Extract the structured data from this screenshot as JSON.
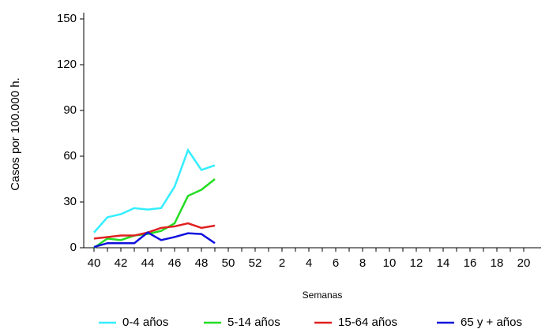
{
  "chart_data": {
    "type": "line",
    "y_label": "Casos por 100.000 h.",
    "x_label": "Semanas",
    "categories": [
      "40",
      null,
      "42",
      null,
      "44",
      null,
      "46",
      null,
      "48",
      null,
      "50",
      null,
      "52",
      null,
      "2",
      null,
      "4",
      null,
      "6",
      null,
      "8",
      null,
      "10",
      null,
      "12",
      null,
      "14",
      null,
      "16",
      null,
      "18",
      null,
      "20"
    ],
    "ylim": [
      0,
      150
    ],
    "yticks": [
      0,
      30,
      60,
      90,
      120,
      150
    ],
    "legend": "bottom",
    "series": [
      {
        "name": "0-4 años",
        "color": "#33eeff",
        "values": [
          10,
          20,
          22,
          26,
          25,
          26,
          40,
          64,
          51,
          54,
          null,
          null,
          null,
          null,
          null,
          null,
          null,
          null,
          null,
          null,
          null,
          null,
          null,
          null,
          null,
          null,
          null,
          null,
          null,
          null,
          null,
          null,
          null
        ]
      },
      {
        "name": "5-14 años",
        "color": "#22dd22",
        "values": [
          0,
          6,
          5,
          8,
          9,
          11,
          16,
          34,
          38,
          45,
          null,
          null,
          null,
          null,
          null,
          null,
          null,
          null,
          null,
          null,
          null,
          null,
          null,
          null,
          null,
          null,
          null,
          null,
          null,
          null,
          null,
          null,
          null
        ]
      },
      {
        "name": "15-64 años",
        "color": "#e02020",
        "values": [
          6,
          7,
          8,
          8,
          10,
          13,
          14,
          16,
          13,
          14.5,
          null,
          null,
          null,
          null,
          null,
          null,
          null,
          null,
          null,
          null,
          null,
          null,
          null,
          null,
          null,
          null,
          null,
          null,
          null,
          null,
          null,
          null,
          null
        ]
      },
      {
        "name": "65 y + años",
        "color": "#1010dd",
        "values": [
          0.5,
          3,
          3,
          3,
          10,
          5,
          7,
          9.5,
          9,
          3,
          null,
          null,
          null,
          null,
          null,
          null,
          null,
          null,
          null,
          null,
          null,
          null,
          null,
          null,
          null,
          null,
          null,
          null,
          null,
          null,
          null,
          null,
          null
        ]
      }
    ]
  }
}
